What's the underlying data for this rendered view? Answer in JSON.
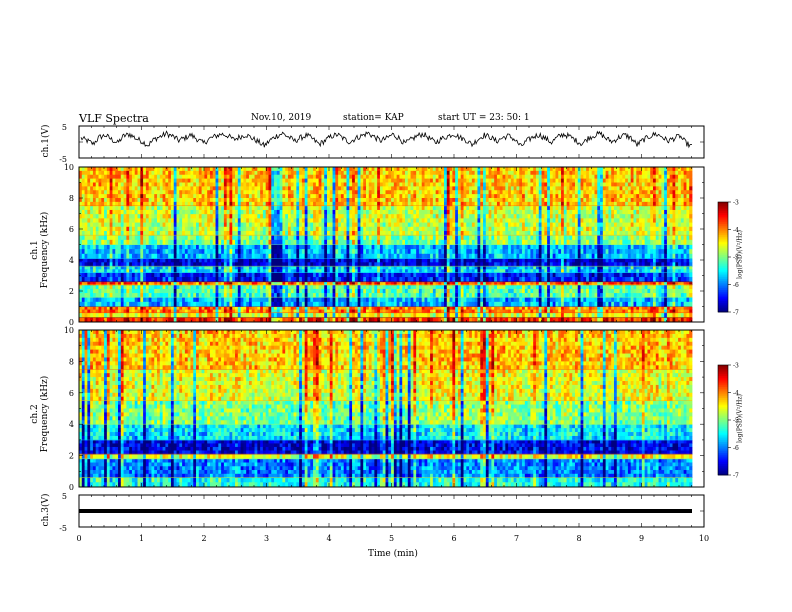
{
  "header": {
    "title": "VLF Spectra",
    "date": "Nov.10, 2019",
    "station": "station= KAP",
    "start": "start  UT  =   23: 50: 1"
  },
  "chart_data": [
    {
      "type": "line",
      "name": "ch1-waveform",
      "ylabel": "ch.1(V)",
      "ylim": [
        -5,
        5
      ],
      "yticks": [
        "5",
        "-5"
      ],
      "xlim": [
        0,
        10
      ],
      "values": [
        1.2,
        0.4,
        -0.6,
        1.5,
        2.1,
        0.8,
        -0.3,
        1.9,
        2.4,
        1.1,
        0.2,
        -1.0,
        0.9,
        1.7,
        2.6,
        1.8,
        0.5,
        1.3,
        2.2,
        0.9,
        -0.4,
        1.0,
        1.8,
        2.5,
        2.0,
        0.7,
        1.6,
        2.3,
        1.2,
        0.1,
        -1.2,
        0.6,
        1.9,
        2.7,
        1.5,
        0.3,
        1.4,
        2.1,
        0.8,
        -0.7,
        0.5,
        1.8,
        2.3,
        1.0,
        0.0,
        1.2,
        2.0,
        2.8,
        1.6,
        0.4,
        1.1,
        2.4,
        1.3,
        -0.5,
        0.7,
        1.9,
        2.5,
        1.2,
        -0.2,
        1.0,
        1.8,
        2.6,
        1.4,
        0.6,
        -0.8,
        0.9,
        2.2,
        1.5,
        0.2,
        1.3,
        2.0,
        0.7,
        -1.4,
        0.4,
        1.6,
        2.3,
        1.1,
        -0.1,
        1.5,
        2.4,
        1.7,
        0.5,
        -0.6,
        1.2,
        2.1,
        2.6,
        1.0,
        0.1,
        1.4,
        2.2,
        1.3,
        -0.9,
        0.6,
        1.7,
        2.5,
        1.8,
        0.3,
        1.1,
        1.9,
        -0.3,
        -1.5
      ]
    },
    {
      "type": "heatmap",
      "name": "ch1-spectrogram",
      "ylabel": "ch.1\nFrequency (kHz)",
      "xlim": [
        0,
        10
      ],
      "ylim": [
        0,
        10
      ],
      "yticks": [
        "0",
        "2",
        "4",
        "6",
        "8",
        "10"
      ],
      "colorbar": {
        "label": "log(PSD)(V²/Hz)",
        "ticks": [
          "-3",
          "-4",
          "-5",
          "-6",
          "-7"
        ],
        "range": [
          -7,
          -3
        ]
      },
      "bands": [
        {
          "f0": 0.0,
          "f1": 0.3,
          "level": -3.6
        },
        {
          "f0": 0.3,
          "f1": 0.6,
          "level": -4.6
        },
        {
          "f0": 0.6,
          "f1": 1.0,
          "level": -4.0
        },
        {
          "f0": 1.0,
          "f1": 1.6,
          "level": -5.8
        },
        {
          "f0": 1.6,
          "f1": 2.4,
          "level": -5.2
        },
        {
          "f0": 2.4,
          "f1": 2.6,
          "level": -3.8
        },
        {
          "f0": 2.6,
          "f1": 3.2,
          "level": -6.4
        },
        {
          "f0": 3.2,
          "f1": 3.6,
          "level": -5.6
        },
        {
          "f0": 3.6,
          "f1": 4.1,
          "level": -6.6
        },
        {
          "f0": 4.1,
          "f1": 5.0,
          "level": -5.8
        },
        {
          "f0": 5.0,
          "f1": 5.6,
          "level": -5.0
        },
        {
          "f0": 5.6,
          "f1": 7.5,
          "level": -4.7
        },
        {
          "f0": 7.5,
          "f1": 10.0,
          "level": -4.3
        }
      ]
    },
    {
      "type": "heatmap",
      "name": "ch2-spectrogram",
      "ylabel": "ch.2\nFrequency (kHz)",
      "xlim": [
        0,
        10
      ],
      "ylim": [
        0,
        10
      ],
      "yticks": [
        "0",
        "2",
        "4",
        "6",
        "8",
        "10"
      ],
      "colorbar": {
        "label": "log(PSD)(V²/Hz)",
        "ticks": [
          "-3",
          "-4",
          "-5",
          "-6",
          "-7"
        ],
        "range": [
          -7,
          -3
        ]
      },
      "bands": [
        {
          "f0": 0.0,
          "f1": 0.6,
          "level": -5.4
        },
        {
          "f0": 0.6,
          "f1": 1.8,
          "level": -6.0
        },
        {
          "f0": 1.8,
          "f1": 2.1,
          "level": -4.6
        },
        {
          "f0": 2.1,
          "f1": 3.0,
          "level": -6.6
        },
        {
          "f0": 3.0,
          "f1": 4.0,
          "level": -5.6
        },
        {
          "f0": 4.0,
          "f1": 5.5,
          "level": -5.0
        },
        {
          "f0": 5.5,
          "f1": 7.5,
          "level": -4.6
        },
        {
          "f0": 7.5,
          "f1": 10.0,
          "level": -4.3
        }
      ]
    },
    {
      "type": "line",
      "name": "ch3-waveform",
      "ylabel": "ch.3(V)",
      "ylim": [
        -5,
        5
      ],
      "yticks": [
        "5",
        "-5"
      ],
      "xlim": [
        0,
        10
      ],
      "values": [
        0,
        0
      ],
      "xlabel": "Time  (min)",
      "xticks": [
        "0",
        "1",
        "2",
        "3",
        "4",
        "5",
        "6",
        "7",
        "8",
        "9",
        "10"
      ]
    }
  ],
  "colors": {
    "colormap": [
      "#00007f",
      "#0000ff",
      "#0080ff",
      "#00ffff",
      "#80ff80",
      "#ffff00",
      "#ff8000",
      "#ff0000",
      "#7f0000"
    ]
  }
}
